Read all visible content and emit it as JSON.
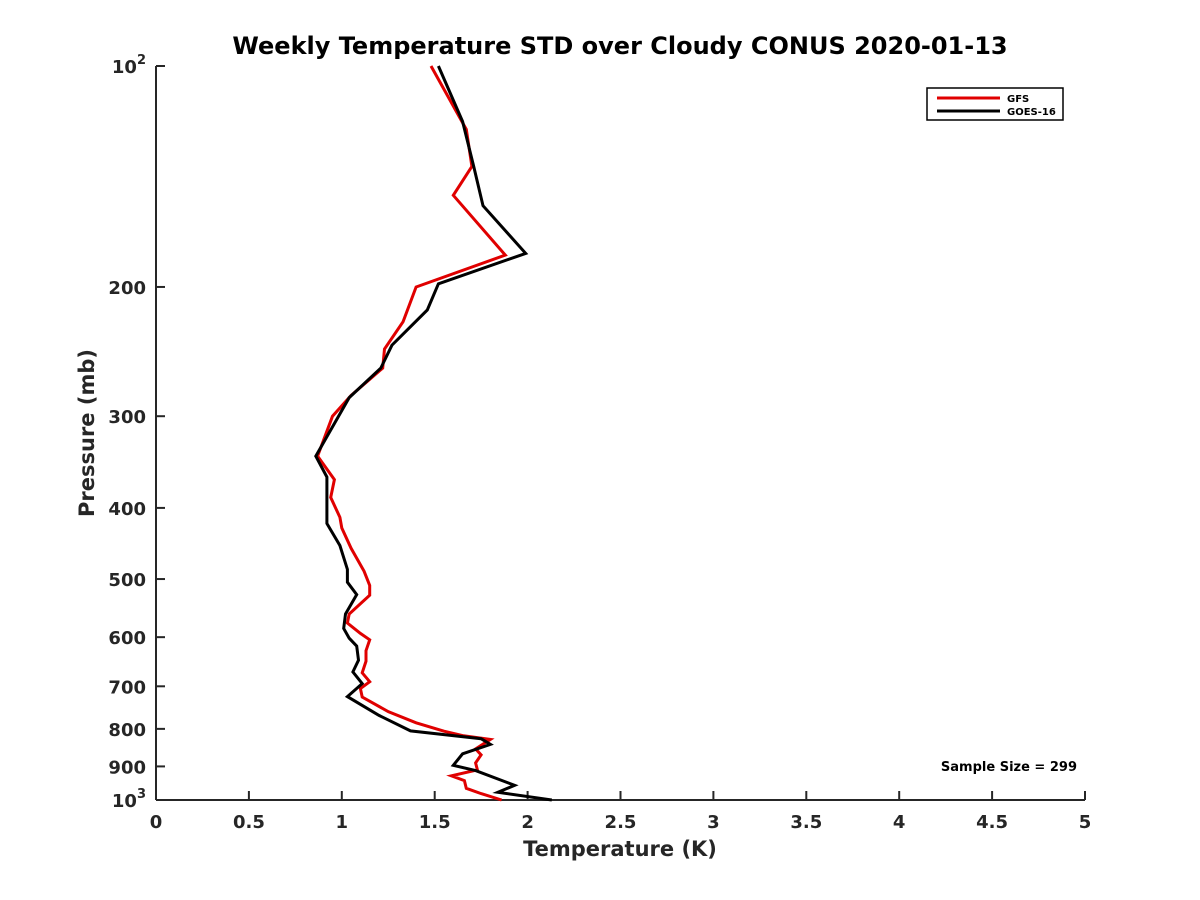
{
  "chart_data": {
    "type": "line",
    "title": "Weekly Temperature STD over Cloudy CONUS 2020-01-13",
    "xlabel": "Temperature (K)",
    "ylabel": "Pressure (mb)",
    "xlim": [
      0,
      5
    ],
    "ylim": [
      100,
      1000
    ],
    "yscale": "log",
    "y_reversed": true,
    "grid": false,
    "legend_position": "top-right",
    "x_ticks": [
      "0",
      "0.5",
      "1",
      "1.5",
      "2",
      "2.5",
      "3",
      "3.5",
      "4",
      "4.5",
      "5"
    ],
    "y_ticks": [
      {
        "value": 100,
        "label": "10",
        "sup": "2"
      },
      {
        "value": 200,
        "label": "200",
        "sup": ""
      },
      {
        "value": 300,
        "label": "300",
        "sup": ""
      },
      {
        "value": 400,
        "label": "400",
        "sup": ""
      },
      {
        "value": 500,
        "label": "500",
        "sup": ""
      },
      {
        "value": 600,
        "label": "600",
        "sup": ""
      },
      {
        "value": 700,
        "label": "700",
        "sup": ""
      },
      {
        "value": 800,
        "label": "800",
        "sup": ""
      },
      {
        "value": 900,
        "label": "900",
        "sup": ""
      },
      {
        "value": 1000,
        "label": "10",
        "sup": "3"
      }
    ],
    "annotation": "Sample Size = 299",
    "series": [
      {
        "name": "GFS",
        "color": "#e00000",
        "points": [
          [
            1.48,
            100
          ],
          [
            1.67,
            122
          ],
          [
            1.7,
            137
          ],
          [
            1.6,
            150
          ],
          [
            1.88,
            181
          ],
          [
            1.4,
            200
          ],
          [
            1.33,
            223
          ],
          [
            1.23,
            243
          ],
          [
            1.22,
            258
          ],
          [
            1.05,
            281
          ],
          [
            0.95,
            300
          ],
          [
            0.87,
            340
          ],
          [
            0.96,
            366
          ],
          [
            0.94,
            387
          ],
          [
            0.99,
            412
          ],
          [
            1.0,
            426
          ],
          [
            1.05,
            454
          ],
          [
            1.12,
            488
          ],
          [
            1.15,
            510
          ],
          [
            1.15,
            526
          ],
          [
            1.04,
            558
          ],
          [
            1.03,
            574
          ],
          [
            1.1,
            593
          ],
          [
            1.15,
            605
          ],
          [
            1.13,
            626
          ],
          [
            1.13,
            647
          ],
          [
            1.11,
            671
          ],
          [
            1.15,
            690
          ],
          [
            1.1,
            705
          ],
          [
            1.11,
            724
          ],
          [
            1.25,
            758
          ],
          [
            1.4,
            785
          ],
          [
            1.55,
            806
          ],
          [
            1.65,
            817
          ],
          [
            1.8,
            827
          ],
          [
            1.72,
            852
          ],
          [
            1.75,
            868
          ],
          [
            1.72,
            890
          ],
          [
            1.73,
            910
          ],
          [
            1.59,
            927
          ],
          [
            1.66,
            941
          ],
          [
            1.67,
            964
          ],
          [
            1.75,
            980
          ],
          [
            1.86,
            1000
          ]
        ]
      },
      {
        "name": "GOES-16",
        "color": "#000000",
        "points": [
          [
            1.52,
            100
          ],
          [
            1.65,
            119
          ],
          [
            1.71,
            137
          ],
          [
            1.76,
            155
          ],
          [
            1.99,
            180
          ],
          [
            1.52,
            198
          ],
          [
            1.46,
            215
          ],
          [
            1.27,
            240
          ],
          [
            1.21,
            258
          ],
          [
            1.04,
            283
          ],
          [
            0.86,
            340
          ],
          [
            0.92,
            363
          ],
          [
            0.92,
            420
          ],
          [
            0.99,
            450
          ],
          [
            1.03,
            485
          ],
          [
            1.03,
            505
          ],
          [
            1.08,
            525
          ],
          [
            1.02,
            558
          ],
          [
            1.01,
            584
          ],
          [
            1.04,
            602
          ],
          [
            1.08,
            617
          ],
          [
            1.09,
            645
          ],
          [
            1.06,
            669
          ],
          [
            1.11,
            694
          ],
          [
            1.03,
            723
          ],
          [
            1.2,
            767
          ],
          [
            1.37,
            805
          ],
          [
            1.75,
            825
          ],
          [
            1.8,
            840
          ],
          [
            1.65,
            865
          ],
          [
            1.6,
            897
          ],
          [
            1.72,
            912
          ],
          [
            1.93,
            955
          ],
          [
            1.84,
            976
          ],
          [
            2.13,
            1000
          ]
        ]
      }
    ]
  }
}
